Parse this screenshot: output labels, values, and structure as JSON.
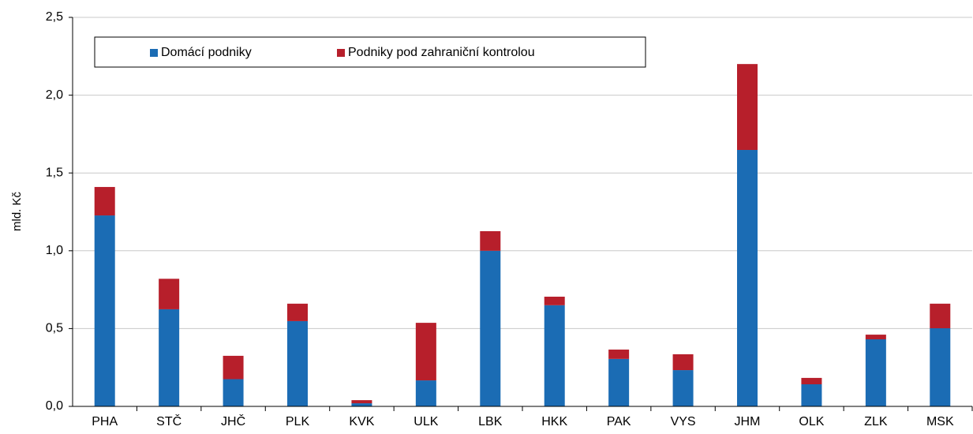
{
  "chart_data": {
    "type": "stacked_bar",
    "ylabel": "mld. Kč",
    "categories": [
      "PHA",
      "STČ",
      "JHČ",
      "PLK",
      "KVK",
      "ULK",
      "LBK",
      "HKK",
      "PAK",
      "VYS",
      "JHM",
      "OLK",
      "ZLK",
      "MSK"
    ],
    "series": [
      {
        "name": "Domácí podniky",
        "color": "#1b6cb4",
        "values": [
          1.227,
          0.624,
          0.175,
          0.548,
          0.02,
          0.167,
          1.0,
          0.65,
          0.305,
          0.233,
          1.648,
          0.142,
          0.431,
          0.502
        ]
      },
      {
        "name": "Podniky pod zahraniční kontrolou",
        "color": "#b71f2b",
        "values": [
          0.183,
          0.196,
          0.15,
          0.112,
          0.02,
          0.37,
          0.126,
          0.055,
          0.06,
          0.102,
          0.552,
          0.041,
          0.03,
          0.158
        ]
      }
    ],
    "ylim": [
      0,
      2.5
    ],
    "yticks": [
      {
        "value": 0,
        "label": "0,0"
      },
      {
        "value": 0.5,
        "label": "0,5"
      },
      {
        "value": 1.0,
        "label": "1,0"
      },
      {
        "value": 1.5,
        "label": "1,5"
      },
      {
        "value": 2.0,
        "label": "2,0"
      },
      {
        "value": 2.5,
        "label": "2,5"
      }
    ],
    "grid": true,
    "legend": "top-left"
  }
}
